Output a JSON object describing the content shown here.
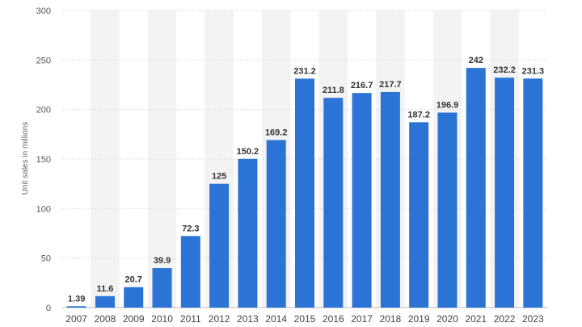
{
  "chart_data": {
    "type": "bar",
    "title": "",
    "xlabel": "",
    "ylabel": "Unit sales in millions",
    "ylim": [
      0,
      300
    ],
    "yticks": [
      0,
      50,
      100,
      150,
      200,
      250,
      300
    ],
    "grid": true,
    "categories": [
      "2007",
      "2008",
      "2009",
      "2010",
      "2011",
      "2012",
      "2013",
      "2014",
      "2015",
      "2016",
      "2017",
      "2018",
      "2019",
      "2020",
      "2021",
      "2022",
      "2023"
    ],
    "values": [
      1.39,
      11.6,
      20.7,
      39.9,
      72.3,
      125,
      150.2,
      169.2,
      231.2,
      211.8,
      216.7,
      217.7,
      187.2,
      196.9,
      242,
      232.2,
      231.3
    ],
    "value_labels": [
      "1.39",
      "11.6",
      "20.7",
      "39.9",
      "72.3",
      "125",
      "150.2",
      "169.2",
      "231.2",
      "211.8",
      "216.7",
      "217.7",
      "187.2",
      "196.9",
      "242",
      "232.2",
      "231.3"
    ],
    "bar_color": "#2b74d6",
    "alt_band_color": "#f3f3f3",
    "gridline_color": "#dddddd"
  }
}
